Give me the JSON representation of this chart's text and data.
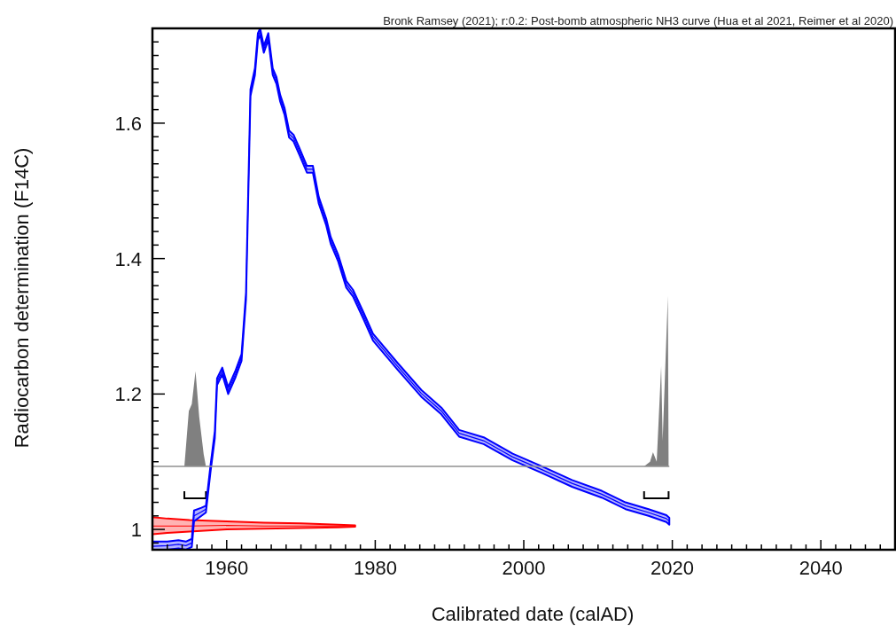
{
  "chart_data": {
    "type": "line",
    "title": "Bronk Ramsey (2021); r:0.2: Post-bomb atmospheric NH3 curve (Hua et al 2021, Reimer et al 2020)",
    "xlabel": "Calibrated date (calAD)",
    "ylabel": "Radiocarbon determination (F14C)",
    "xlim": [
      1950,
      2050
    ],
    "ylim": [
      0.97,
      1.74
    ],
    "xticks": [
      {
        "value": 1950,
        "label": null
      },
      {
        "value": 1952,
        "label": null
      },
      {
        "value": 1954,
        "label": null
      },
      {
        "value": 1956,
        "label": null
      },
      {
        "value": 1958,
        "label": null
      },
      1960,
      {
        "value": 1962,
        "label": null
      },
      {
        "value": 1964,
        "label": null
      },
      {
        "value": 1966,
        "label": null
      },
      {
        "value": 1968,
        "label": null
      },
      {
        "value": 1970,
        "label": null
      },
      {
        "value": 1972,
        "label": null
      },
      {
        "value": 1974,
        "label": null
      },
      {
        "value": 1976,
        "label": null
      },
      {
        "value": 1978,
        "label": null
      },
      1980,
      {
        "value": 1982,
        "label": null
      },
      {
        "value": 1984,
        "label": null
      },
      {
        "value": 1986,
        "label": null
      },
      {
        "value": 1988,
        "label": null
      },
      {
        "value": 1990,
        "label": null
      },
      {
        "value": 1992,
        "label": null
      },
      {
        "value": 1994,
        "label": null
      },
      {
        "value": 1996,
        "label": null
      },
      {
        "value": 1998,
        "label": null
      },
      2000,
      {
        "value": 2002,
        "label": null
      },
      {
        "value": 2004,
        "label": null
      },
      {
        "value": 2006,
        "label": null
      },
      {
        "value": 2008,
        "label": null
      },
      {
        "value": 2010,
        "label": null
      },
      {
        "value": 2012,
        "label": null
      },
      {
        "value": 2014,
        "label": null
      },
      {
        "value": 2016,
        "label": null
      },
      {
        "value": 2018,
        "label": null
      },
      2020,
      {
        "value": 2022,
        "label": null
      },
      {
        "value": 2024,
        "label": null
      },
      {
        "value": 2026,
        "label": null
      },
      {
        "value": 2028,
        "label": null
      },
      {
        "value": 2030,
        "label": null
      },
      {
        "value": 2032,
        "label": null
      },
      {
        "value": 2034,
        "label": null
      },
      {
        "value": 2036,
        "label": null
      },
      {
        "value": 2038,
        "label": null
      },
      2040,
      {
        "value": 2042,
        "label": null
      },
      {
        "value": 2044,
        "label": null
      },
      {
        "value": 2046,
        "label": null
      },
      {
        "value": 2048,
        "label": null
      },
      {
        "value": 2050,
        "label": null
      }
    ],
    "yticks": [
      {
        "value": 0.98,
        "label": null
      },
      1,
      {
        "value": 1.02,
        "label": null
      },
      {
        "value": 1.04,
        "label": null
      },
      {
        "value": 1.06,
        "label": null
      },
      {
        "value": 1.08,
        "label": null
      },
      {
        "value": 1.1,
        "label": null
      },
      {
        "value": 1.12,
        "label": null
      },
      {
        "value": 1.14,
        "label": null
      },
      {
        "value": 1.16,
        "label": null
      },
      {
        "value": 1.18,
        "label": null
      },
      1.2,
      {
        "value": 1.22,
        "label": null
      },
      {
        "value": 1.24,
        "label": null
      },
      {
        "value": 1.26,
        "label": null
      },
      {
        "value": 1.28,
        "label": null
      },
      {
        "value": 1.3,
        "label": null
      },
      {
        "value": 1.32,
        "label": null
      },
      {
        "value": 1.34,
        "label": null
      },
      {
        "value": 1.36,
        "label": null
      },
      {
        "value": 1.38,
        "label": null
      },
      1.4,
      {
        "value": 1.42,
        "label": null
      },
      {
        "value": 1.44,
        "label": null
      },
      {
        "value": 1.46,
        "label": null
      },
      {
        "value": 1.48,
        "label": null
      },
      {
        "value": 1.5,
        "label": null
      },
      {
        "value": 1.52,
        "label": null
      },
      {
        "value": 1.54,
        "label": null
      },
      {
        "value": 1.56,
        "label": null
      },
      {
        "value": 1.58,
        "label": null
      },
      1.6,
      {
        "value": 1.62,
        "label": null
      },
      {
        "value": 1.64,
        "label": null
      },
      {
        "value": 1.66,
        "label": null
      },
      {
        "value": 1.68,
        "label": null
      },
      {
        "value": 1.7,
        "label": null
      },
      {
        "value": 1.72,
        "label": null
      }
    ],
    "grid": false,
    "marker": "none",
    "line_style": "solid",
    "ref_lines": [
      {
        "axis": "y",
        "value": 1.093,
        "color": "#909090"
      }
    ],
    "series": [
      {
        "type": "area",
        "color": "#808080",
        "x": [
          1954.3,
          1954.9,
          1955.3,
          1955.8,
          1956.3,
          1956.9,
          1957.2,
          1986,
          2016.2,
          2017.0,
          2017.4,
          2017.9,
          2018.5,
          2018.7,
          2019.4,
          2019.5
        ],
        "values": [
          1.093,
          1.175,
          1.185,
          1.234,
          1.166,
          1.111,
          1.093,
          null,
          1.093,
          1.1,
          1.114,
          1.1,
          1.241,
          1.131,
          1.345,
          1.093
        ]
      },
      {
        "color": "#ff0000",
        "x": [
          1950,
          1952,
          1955,
          1960,
          1965,
          1970,
          1975,
          1977.3
        ],
        "values": [
          1.005,
          1.005,
          1.005,
          1.006,
          1.005,
          1.005,
          1.005,
          1.005
        ],
        "lower": [
          0.993,
          0.995,
          0.997,
          1.0,
          1.001,
          1.002,
          1.003,
          1.004
        ],
        "upper": [
          1.018,
          1.016,
          1.014,
          1.012,
          1.01,
          1.009,
          1.007,
          1.006
        ]
      },
      {
        "color": "#0000ff",
        "x": [
          1950,
          1952,
          1953.5,
          1954.5,
          1955.3,
          1955.6,
          1956.6,
          1957.2,
          1957.8,
          1958.4,
          1958.7,
          1959.4,
          1960.2,
          1961.2,
          1962,
          1962.6,
          1963.2,
          1963.8,
          1964.2,
          1964.5,
          1965,
          1965.6,
          1966.2,
          1966.7,
          1967.2,
          1967.8,
          1968.4,
          1969,
          1969.8,
          1970.8,
          1971.6,
          1972.4,
          1973.4,
          1974,
          1975,
          1976.1,
          1977,
          1978.4,
          1979.7,
          1983,
          1986.2,
          1988.9,
          1991.3,
          1994.6,
          1998.5,
          2002.5,
          2006.5,
          2010.5,
          2013.7,
          2016.8,
          2019.2,
          2019.6
        ],
        "values": [
          0.975,
          0.976,
          0.978,
          0.976,
          0.98,
          1.02,
          1.026,
          1.03,
          1.088,
          1.14,
          1.218,
          1.234,
          1.205,
          1.23,
          1.254,
          1.345,
          1.645,
          1.676,
          1.728,
          1.735,
          1.709,
          1.728,
          1.676,
          1.663,
          1.637,
          1.617,
          1.584,
          1.578,
          1.558,
          1.532,
          1.532,
          1.486,
          1.454,
          1.427,
          1.401,
          1.362,
          1.349,
          1.316,
          1.284,
          1.241,
          1.201,
          1.175,
          1.142,
          1.131,
          1.107,
          1.088,
          1.068,
          1.052,
          1.035,
          1.025,
          1.016,
          1.012
        ],
        "lower": [
          0.97,
          0.97,
          0.972,
          0.97,
          0.974,
          1.012,
          1.02,
          1.025,
          1.083,
          1.135,
          1.213,
          1.229,
          1.2,
          1.225,
          1.249,
          1.34,
          1.64,
          1.671,
          1.723,
          1.73,
          1.704,
          1.723,
          1.671,
          1.658,
          1.632,
          1.612,
          1.579,
          1.573,
          1.553,
          1.527,
          1.527,
          1.481,
          1.449,
          1.422,
          1.396,
          1.357,
          1.344,
          1.311,
          1.279,
          1.236,
          1.196,
          1.17,
          1.137,
          1.126,
          1.102,
          1.083,
          1.063,
          1.047,
          1.03,
          1.02,
          1.011,
          1.007
        ],
        "upper": [
          0.982,
          0.982,
          0.984,
          0.982,
          0.986,
          1.028,
          1.032,
          1.035,
          1.093,
          1.145,
          1.223,
          1.239,
          1.21,
          1.235,
          1.259,
          1.35,
          1.65,
          1.681,
          1.733,
          1.74,
          1.714,
          1.733,
          1.681,
          1.668,
          1.642,
          1.622,
          1.589,
          1.583,
          1.563,
          1.537,
          1.537,
          1.491,
          1.459,
          1.432,
          1.406,
          1.367,
          1.354,
          1.321,
          1.289,
          1.246,
          1.206,
          1.18,
          1.147,
          1.136,
          1.112,
          1.093,
          1.073,
          1.057,
          1.04,
          1.03,
          1.021,
          1.017
        ]
      }
    ]
  }
}
